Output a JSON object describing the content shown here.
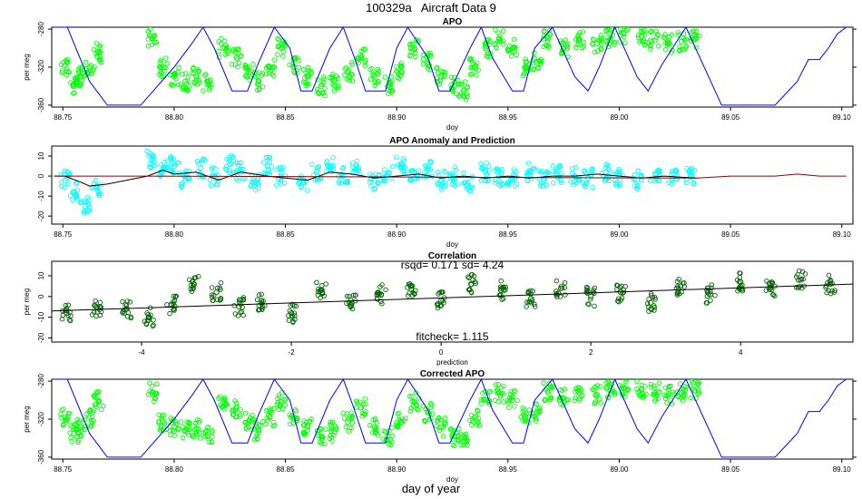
{
  "title": "100329a   Aircraft Data 9",
  "bottom_label": "day of year",
  "colors": {
    "green": "#00ff00",
    "cyan": "#00ffff",
    "darkgreen": "#006400",
    "blue": "#0000ff",
    "red": "#8b0000",
    "black": "#000000"
  },
  "chart_data": [
    {
      "type": "line",
      "title": "APO",
      "xlabel": "doy",
      "ylabel": "per meg",
      "xlim": [
        88.745,
        89.105
      ],
      "ylim": [
        -362,
        -278
      ],
      "xticks": [
        "88.75",
        "88.80",
        "88.85",
        "88.90",
        "88.95",
        "89.00",
        "89.05",
        "89.10"
      ],
      "yticks": [
        "-280",
        "-320",
        "-360"
      ],
      "series": [
        {
          "style": "points",
          "color": "green",
          "x": [
            88.751,
            88.755,
            88.758,
            88.762,
            88.766,
            88.79,
            88.795,
            88.8,
            88.805,
            88.81,
            88.815,
            88.822,
            88.828,
            88.834,
            88.838,
            88.843,
            88.848,
            88.854,
            88.86,
            88.866,
            88.872,
            88.878,
            88.884,
            88.89,
            88.896,
            88.902,
            88.908,
            88.914,
            88.92,
            88.926,
            88.93,
            88.935,
            88.94,
            88.946,
            88.952,
            88.958,
            88.963,
            88.968,
            88.975,
            88.982,
            88.99,
            88.996,
            89.002,
            89.01,
            89.016,
            89.022,
            89.028,
            89.034
          ],
          "y": [
            -318,
            -340,
            -330,
            -320,
            -305,
            -290,
            -320,
            -330,
            -335,
            -330,
            -335,
            -300,
            -310,
            -325,
            -335,
            -320,
            -300,
            -320,
            -330,
            -340,
            -335,
            -325,
            -310,
            -330,
            -340,
            -325,
            -300,
            -315,
            -330,
            -340,
            -345,
            -320,
            -300,
            -290,
            -300,
            -320,
            -315,
            -290,
            -300,
            -292,
            -295,
            -290,
            -285,
            -288,
            -292,
            -295,
            -293,
            -290
          ]
        },
        {
          "style": "line",
          "color": "blue",
          "x": [
            88.746,
            88.752,
            88.762,
            88.77,
            88.785,
            88.8,
            88.808,
            88.813,
            88.818,
            88.826,
            88.833,
            88.838,
            88.845,
            88.852,
            88.857,
            88.862,
            88.87,
            88.876,
            88.881,
            88.886,
            88.895,
            88.9,
            88.905,
            88.914,
            88.919,
            88.924,
            88.933,
            88.938,
            88.943,
            88.952,
            88.957,
            88.962,
            88.97,
            88.98,
            88.986,
            88.991,
            88.998,
            89.008,
            89.013,
            89.019,
            89.03,
            89.046,
            89.07,
            89.08,
            89.085,
            89.09,
            89.094,
            89.098,
            89.102
          ],
          "y": [
            -278,
            -278,
            -335,
            -360,
            -360,
            -320,
            -295,
            -278,
            -300,
            -345,
            -345,
            -315,
            -278,
            -300,
            -345,
            -345,
            -300,
            -278,
            -310,
            -345,
            -345,
            -300,
            -278,
            -310,
            -345,
            -345,
            -300,
            -278,
            -310,
            -345,
            -345,
            -300,
            -278,
            -330,
            -345,
            -320,
            -278,
            -330,
            -345,
            -318,
            -278,
            -360,
            -360,
            -335,
            -312,
            -312,
            -300,
            -285,
            -278
          ]
        }
      ]
    },
    {
      "type": "line",
      "title": "APO Anomaly and Prediction",
      "xlabel": "doy",
      "ylabel": "",
      "xlim": [
        88.745,
        89.105
      ],
      "ylim": [
        -24,
        15
      ],
      "xticks": [
        "88.75",
        "88.80",
        "88.85",
        "88.90",
        "88.95",
        "89.00",
        "89.05",
        "89.10"
      ],
      "yticks": [
        "10",
        "0",
        "-10",
        "-20"
      ],
      "series": [
        {
          "style": "points",
          "color": "cyan",
          "x": [
            88.751,
            88.755,
            88.76,
            88.765,
            88.79,
            88.795,
            88.8,
            88.805,
            88.812,
            88.818,
            88.825,
            88.83,
            88.836,
            88.842,
            88.848,
            88.858,
            88.864,
            88.87,
            88.876,
            88.882,
            88.89,
            88.896,
            88.902,
            88.908,
            88.914,
            88.92,
            88.926,
            88.932,
            88.94,
            88.946,
            88.952,
            88.96,
            88.966,
            88.972,
            88.98,
            88.986,
            88.994,
            89.0,
            89.008,
            89.016,
            89.024,
            89.032
          ],
          "y": [
            -2,
            -8,
            -15,
            -6,
            8,
            3,
            5,
            -2,
            4,
            0,
            6,
            2,
            -3,
            5,
            0,
            -3,
            2,
            5,
            0,
            3,
            -2,
            1,
            6,
            -1,
            3,
            -2,
            0,
            -3,
            2,
            0,
            -1,
            2,
            -2,
            1,
            0,
            -1,
            2,
            0,
            -2,
            1,
            -1,
            0
          ]
        },
        {
          "style": "line",
          "color": "black",
          "x": [
            88.746,
            88.751,
            88.758,
            88.762,
            88.77,
            88.788,
            88.795,
            88.8,
            88.81,
            88.82,
            88.83,
            88.842,
            88.85,
            88.86,
            88.87,
            88.88,
            88.89,
            88.9,
            88.91,
            88.92,
            88.93,
            88.94,
            88.95,
            88.96,
            88.97,
            88.98,
            88.99,
            89.0,
            89.01,
            89.02,
            89.035
          ],
          "y": [
            0,
            0,
            -3,
            -5,
            -4,
            0,
            3,
            1,
            2,
            -2,
            2,
            0,
            -1,
            -2,
            2,
            1,
            -1,
            0,
            1,
            -1,
            0,
            -1,
            0,
            -1,
            0,
            0,
            1,
            0,
            -1,
            0,
            -1
          ]
        },
        {
          "style": "line",
          "color": "red",
          "x": [
            88.746,
            88.751,
            88.77,
            88.78,
            88.788,
            89.035,
            89.05,
            89.06,
            89.07,
            89.08,
            89.09,
            89.102
          ],
          "y": [
            0,
            0,
            0,
            0,
            0,
            -1,
            0,
            0,
            0,
            1,
            0,
            0
          ]
        }
      ]
    },
    {
      "type": "scatter",
      "title": "Correlation",
      "xlabel": "prediction",
      "ylabel": "per meg",
      "xlim": [
        -5.2,
        5.5
      ],
      "ylim": [
        -22,
        17
      ],
      "xticks": [
        "-4",
        "-2",
        "0",
        "2",
        "4"
      ],
      "yticks": [
        "10",
        "0",
        "-10",
        "-20"
      ],
      "annotations": {
        "top": "rsqd= 0.171 sd= 4.24",
        "bottom": "fitcheck= 1.115"
      },
      "series": [
        {
          "style": "points",
          "color": "darkgreen",
          "x": [
            -5.0,
            -4.6,
            -4.2,
            -3.9,
            -3.6,
            -3.3,
            -3.0,
            -2.7,
            -2.4,
            -2.0,
            -1.6,
            -1.2,
            -0.8,
            -0.4,
            0.0,
            0.4,
            0.8,
            1.2,
            1.6,
            2.0,
            2.4,
            2.8,
            3.2,
            3.6,
            4.0,
            4.4,
            4.8,
            5.2
          ],
          "y": [
            -8,
            -5,
            -6,
            -10,
            -4,
            6,
            2,
            -5,
            -2,
            -8,
            3,
            -4,
            1,
            5,
            -2,
            6,
            3,
            -1,
            4,
            0,
            2,
            -3,
            5,
            1,
            7,
            4,
            8,
            6
          ]
        },
        {
          "style": "line",
          "color": "black",
          "x": [
            -5.2,
            5.5
          ],
          "y": [
            -7,
            6
          ]
        }
      ]
    },
    {
      "type": "line",
      "title": "Corrected APO",
      "xlabel": "doy",
      "ylabel": "per meg",
      "xlim": [
        88.745,
        89.105
      ],
      "ylim": [
        -362,
        -278
      ],
      "xticks": [
        "88.75",
        "88.80",
        "88.85",
        "88.90",
        "88.95",
        "89.00",
        "89.05",
        "89.10"
      ],
      "yticks": [
        "-280",
        "-320",
        "-360"
      ],
      "series": [
        {
          "style": "points",
          "color": "green",
          "x": [
            88.751,
            88.755,
            88.758,
            88.762,
            88.766,
            88.79,
            88.795,
            88.8,
            88.805,
            88.81,
            88.815,
            88.822,
            88.828,
            88.834,
            88.838,
            88.843,
            88.848,
            88.854,
            88.86,
            88.866,
            88.872,
            88.878,
            88.884,
            88.89,
            88.896,
            88.902,
            88.908,
            88.914,
            88.92,
            88.926,
            88.93,
            88.935,
            88.94,
            88.946,
            88.952,
            88.958,
            88.963,
            88.968,
            88.975,
            88.982,
            88.99,
            88.996,
            89.002,
            89.01,
            89.016,
            89.022,
            89.028,
            89.034
          ],
          "y": [
            -318,
            -335,
            -328,
            -318,
            -300,
            -292,
            -322,
            -328,
            -332,
            -330,
            -338,
            -302,
            -308,
            -322,
            -332,
            -318,
            -302,
            -318,
            -328,
            -338,
            -333,
            -323,
            -308,
            -328,
            -338,
            -323,
            -302,
            -313,
            -328,
            -338,
            -343,
            -318,
            -300,
            -292,
            -300,
            -318,
            -313,
            -292,
            -298,
            -292,
            -294,
            -290,
            -287,
            -289,
            -292,
            -294,
            -292,
            -290
          ]
        },
        {
          "style": "line",
          "color": "blue",
          "x": [
            88.746,
            88.752,
            88.762,
            88.77,
            88.785,
            88.8,
            88.808,
            88.813,
            88.818,
            88.826,
            88.833,
            88.838,
            88.845,
            88.852,
            88.857,
            88.862,
            88.87,
            88.876,
            88.881,
            88.886,
            88.895,
            88.9,
            88.905,
            88.914,
            88.919,
            88.924,
            88.933,
            88.938,
            88.943,
            88.952,
            88.957,
            88.962,
            88.97,
            88.98,
            88.986,
            88.991,
            88.998,
            89.008,
            89.013,
            89.019,
            89.03,
            89.046,
            89.07,
            89.08,
            89.085,
            89.09,
            89.094,
            89.098,
            89.102
          ],
          "y": [
            -278,
            -278,
            -335,
            -360,
            -360,
            -320,
            -295,
            -278,
            -300,
            -345,
            -345,
            -315,
            -278,
            -300,
            -345,
            -345,
            -300,
            -278,
            -310,
            -345,
            -345,
            -300,
            -278,
            -310,
            -345,
            -345,
            -300,
            -278,
            -310,
            -345,
            -345,
            -300,
            -278,
            -330,
            -345,
            -320,
            -278,
            -330,
            -345,
            -318,
            -278,
            -360,
            -360,
            -335,
            -312,
            -312,
            -300,
            -285,
            -278
          ]
        }
      ]
    }
  ]
}
